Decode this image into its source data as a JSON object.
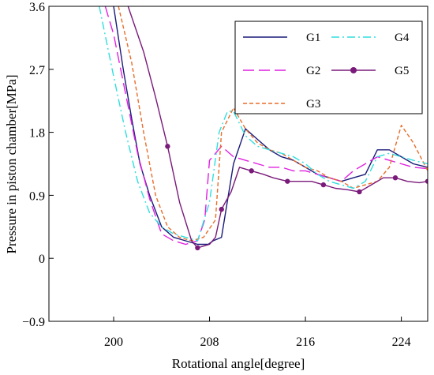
{
  "chart_data": {
    "type": "line",
    "title": "",
    "xlabel": "Rotational angle[degree]",
    "ylabel": "Pressure in piston chamber[MPa]",
    "xlim": [
      194.6,
      226.2
    ],
    "ylim": [
      -0.9,
      3.6
    ],
    "xticks": [
      200,
      208,
      216,
      224
    ],
    "yticks": [
      3.6,
      2.7,
      1.8,
      0.9,
      0,
      -0.9
    ],
    "xtick_labels": [
      "200",
      "208",
      "216",
      "224"
    ],
    "ytick_labels": [
      "3.6",
      "2.7",
      "1.8",
      "0.9",
      "0",
      "−0.9"
    ],
    "grid": false,
    "legend_position": "top-right",
    "series": [
      {
        "name": "G1",
        "color": "#1a1a7a",
        "style": "solid",
        "marker": "none",
        "x": [
          200.0,
          200.8,
          201.5,
          202.2,
          203.0,
          204.0,
          205.0,
          206.0,
          207.0,
          207.9,
          208.3,
          209.0,
          210.0,
          211.0,
          212.0,
          213.0,
          214.0,
          215.0,
          216.0,
          217.0,
          218.0,
          219.0,
          220.0,
          221.0,
          222.0,
          223.0,
          224.0,
          225.0,
          226.2
        ],
        "y": [
          3.6,
          2.7,
          2.0,
          1.35,
          0.9,
          0.45,
          0.3,
          0.25,
          0.2,
          0.2,
          0.25,
          0.3,
          1.35,
          1.85,
          1.7,
          1.55,
          1.45,
          1.4,
          1.3,
          1.2,
          1.15,
          1.1,
          1.15,
          1.2,
          1.55,
          1.55,
          1.45,
          1.35,
          1.3
        ]
      },
      {
        "name": "G2",
        "color": "#e020e0",
        "style": "dash",
        "marker": "none",
        "x": [
          199.3,
          200.0,
          201.0,
          202.0,
          203.0,
          204.0,
          205.0,
          206.0,
          207.0,
          207.6,
          208.0,
          209.0,
          210.0,
          211.0,
          212.0,
          213.0,
          214.0,
          215.0,
          216.0,
          217.0,
          218.0,
          219.0,
          220.0,
          221.0,
          222.0,
          223.0,
          224.0,
          225.0,
          226.2
        ],
        "y": [
          3.6,
          3.2,
          2.35,
          1.5,
          0.85,
          0.35,
          0.25,
          0.2,
          0.25,
          0.55,
          1.4,
          1.6,
          1.45,
          1.4,
          1.35,
          1.3,
          1.3,
          1.25,
          1.25,
          1.2,
          1.15,
          1.1,
          1.25,
          1.35,
          1.45,
          1.4,
          1.35,
          1.3,
          1.28
        ]
      },
      {
        "name": "G3",
        "color": "#e86d2a",
        "style": "shortdash",
        "marker": "none",
        "x": [
          200.4,
          201.5,
          202.5,
          203.5,
          204.5,
          205.5,
          206.5,
          207.5,
          208.5,
          209.0,
          210.0,
          211.0,
          212.0,
          213.0,
          214.0,
          215.0,
          216.0,
          217.0,
          218.0,
          219.0,
          220.0,
          221.0,
          222.0,
          223.0,
          224.0,
          225.0,
          226.2
        ],
        "y": [
          3.6,
          2.8,
          1.8,
          0.9,
          0.45,
          0.3,
          0.25,
          0.3,
          0.55,
          1.8,
          2.15,
          1.85,
          1.65,
          1.55,
          1.5,
          1.4,
          1.3,
          1.25,
          1.15,
          1.1,
          1.0,
          1.05,
          1.1,
          1.3,
          1.9,
          1.65,
          1.25
        ]
      },
      {
        "name": "G4",
        "color": "#30dede",
        "style": "dashdot",
        "marker": "none",
        "x": [
          198.8,
          200.0,
          201.0,
          202.0,
          203.0,
          204.0,
          205.0,
          206.0,
          207.0,
          208.0,
          208.8,
          209.5,
          210.0,
          211.0,
          212.0,
          213.0,
          214.0,
          215.0,
          216.0,
          217.0,
          218.0,
          219.0,
          220.0,
          221.0,
          222.0,
          223.0,
          224.0,
          225.0,
          226.2
        ],
        "y": [
          3.6,
          2.6,
          1.8,
          1.1,
          0.65,
          0.45,
          0.35,
          0.3,
          0.25,
          0.8,
          1.8,
          2.1,
          2.1,
          1.75,
          1.6,
          1.55,
          1.5,
          1.45,
          1.35,
          1.2,
          1.1,
          1.05,
          1.0,
          1.1,
          1.45,
          1.5,
          1.45,
          1.4,
          1.35
        ]
      },
      {
        "name": "G5",
        "color": "#7a1a7a",
        "style": "solid",
        "marker": "circle",
        "x": [
          201.2,
          202.5,
          203.5,
          204.5,
          205.5,
          206.5,
          207.0,
          208.0,
          208.5,
          209.0,
          209.8,
          210.5,
          211.5,
          212.5,
          213.3,
          214.5,
          215.5,
          216.5,
          217.5,
          218.5,
          219.5,
          220.5,
          221.5,
          222.5,
          223.5,
          224.5,
          225.5,
          226.2
        ],
        "y": [
          3.6,
          2.95,
          2.3,
          1.6,
          0.8,
          0.25,
          0.15,
          0.2,
          0.3,
          0.7,
          0.95,
          1.3,
          1.25,
          1.2,
          1.15,
          1.1,
          1.1,
          1.1,
          1.05,
          1.0,
          0.98,
          0.95,
          1.05,
          1.15,
          1.15,
          1.1,
          1.08,
          1.1
        ]
      }
    ],
    "legend_rows": [
      [
        "G1",
        "G4"
      ],
      [
        "G2",
        "G5"
      ],
      [
        "G3"
      ]
    ]
  }
}
